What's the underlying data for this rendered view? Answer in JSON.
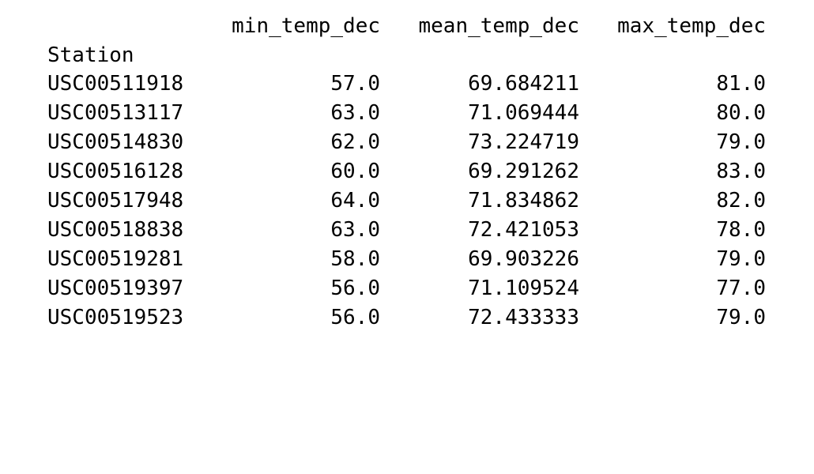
{
  "table": {
    "columns": [
      "min_temp_dec",
      "mean_temp_dec",
      "max_temp_dec"
    ],
    "index_name": "Station",
    "rows": [
      {
        "station": "USC00511918",
        "min": "57.0",
        "mean": "69.684211",
        "max": "81.0"
      },
      {
        "station": "USC00513117",
        "min": "63.0",
        "mean": "71.069444",
        "max": "80.0"
      },
      {
        "station": "USC00514830",
        "min": "62.0",
        "mean": "73.224719",
        "max": "79.0"
      },
      {
        "station": "USC00516128",
        "min": "60.0",
        "mean": "69.291262",
        "max": "83.0"
      },
      {
        "station": "USC00517948",
        "min": "64.0",
        "mean": "71.834862",
        "max": "82.0"
      },
      {
        "station": "USC00518838",
        "min": "63.0",
        "mean": "72.421053",
        "max": "78.0"
      },
      {
        "station": "USC00519281",
        "min": "58.0",
        "mean": "69.903226",
        "max": "79.0"
      },
      {
        "station": "USC00519397",
        "min": "56.0",
        "mean": "71.109524",
        "max": "77.0"
      },
      {
        "station": "USC00519523",
        "min": "56.0",
        "mean": "72.433333",
        "max": "79.0"
      }
    ]
  }
}
